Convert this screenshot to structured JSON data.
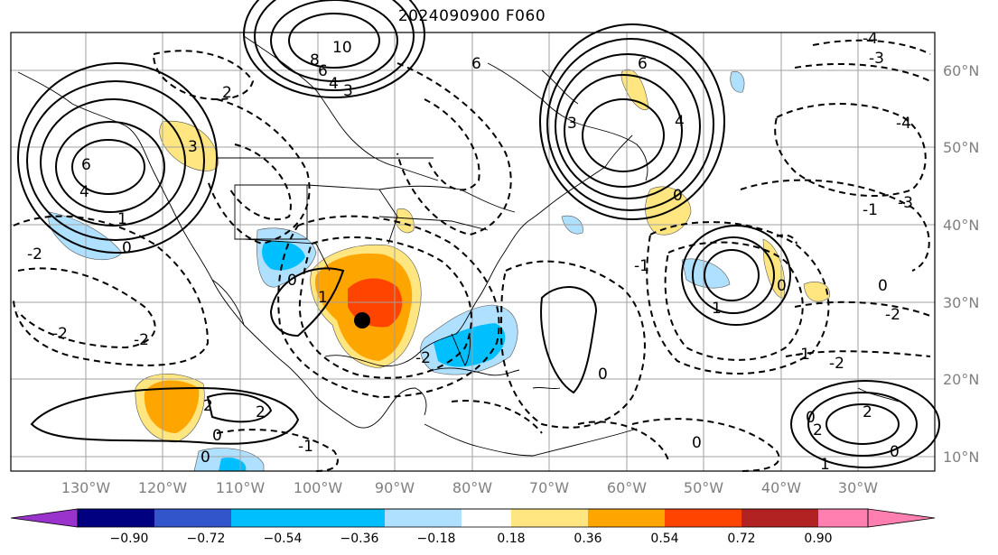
{
  "title": "2024090900 F060",
  "map": {
    "lon_ticks": [
      "130°W",
      "120°W",
      "110°W",
      "100°W",
      "90°W",
      "80°W",
      "70°W",
      "60°W",
      "50°W",
      "40°W",
      "30°W"
    ],
    "lat_ticks": [
      "60°N",
      "50°N",
      "40°N",
      "30°N",
      "20°N",
      "10°N"
    ],
    "contour_labels": [
      "10",
      "8",
      "6",
      "4",
      "3",
      "2",
      "1",
      "0",
      "-1",
      "-2",
      "-3",
      "-4",
      "6",
      "4",
      "3",
      "2",
      "1",
      "0",
      "2",
      "1",
      "0",
      "-2",
      "-1",
      "0",
      "-2",
      "2",
      "1",
      "0"
    ],
    "marker": "storm-center"
  },
  "colorbar": {
    "levels": [
      "−0.90",
      "−0.72",
      "−0.54",
      "−0.36",
      "−0.18",
      "0.18",
      "0.36",
      "0.54",
      "0.72",
      "0.90"
    ],
    "colors": [
      "#9933cc",
      "#000080",
      "#3355cc",
      "#00bfff",
      "#b0e0ff",
      "#ffffff",
      "#ffe680",
      "#ffa500",
      "#ff4400",
      "#b22222",
      "#ff80b0"
    ]
  }
}
